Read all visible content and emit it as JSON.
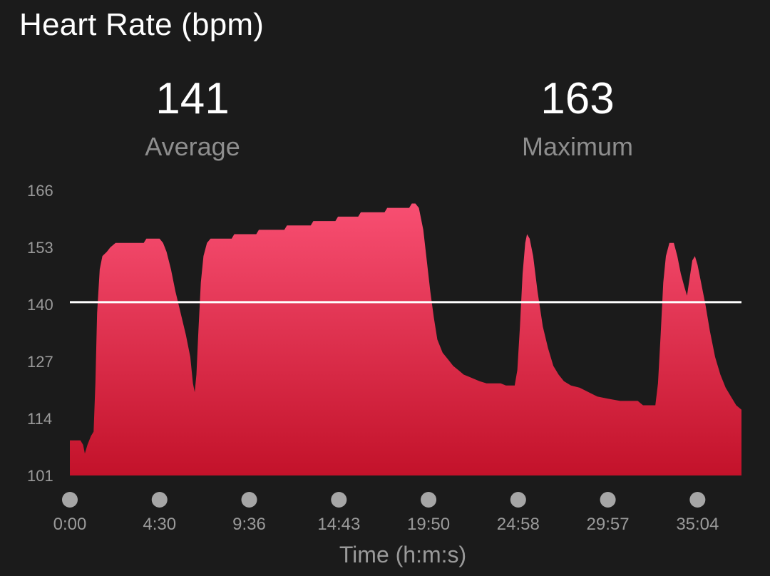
{
  "header": {
    "title": "Heart Rate (bpm)"
  },
  "stats": {
    "average": {
      "value": "141",
      "label": "Average"
    },
    "maximum": {
      "value": "163",
      "label": "Maximum"
    }
  },
  "colors": {
    "fill_top": "#f84f72",
    "fill_bottom": "#c3122a",
    "average_line": "#ffffff",
    "tick_dot": "#a6a6a6"
  },
  "chart_data": {
    "type": "area",
    "title": "Heart Rate (bpm)",
    "xlabel": "Time (h:m:s)",
    "ylabel": "",
    "ylim": [
      101,
      166
    ],
    "yticks": [
      "166",
      "153",
      "140",
      "127",
      "114",
      "101"
    ],
    "xlim_minutes": [
      0,
      38.2
    ],
    "xticks": [
      {
        "label": "0:00",
        "minutes": 0
      },
      {
        "label": "4:30",
        "minutes": 5.1
      },
      {
        "label": "9:36",
        "minutes": 10.2
      },
      {
        "label": "14:43",
        "minutes": 15.3
      },
      {
        "label": "19:50",
        "minutes": 20.4
      },
      {
        "label": "24:58",
        "minutes": 25.5
      },
      {
        "label": "29:57",
        "minutes": 30.6
      },
      {
        "label": "35:04",
        "minutes": 35.7
      }
    ],
    "average_line": 140.5,
    "grid": false,
    "legend": "none",
    "series": [
      {
        "points": [
          [
            0,
            109
          ],
          [
            0.6,
            109
          ],
          [
            0.75,
            108
          ],
          [
            0.85,
            106
          ],
          [
            1.0,
            108
          ],
          [
            1.2,
            110
          ],
          [
            1.35,
            111
          ],
          [
            1.45,
            122
          ],
          [
            1.55,
            138
          ],
          [
            1.7,
            148
          ],
          [
            1.85,
            151
          ],
          [
            2.1,
            152
          ],
          [
            2.3,
            153
          ],
          [
            2.6,
            154
          ],
          [
            4.2,
            154
          ],
          [
            4.35,
            155
          ],
          [
            5.1,
            155
          ],
          [
            5.3,
            154
          ],
          [
            5.5,
            152
          ],
          [
            5.75,
            148
          ],
          [
            6.0,
            143
          ],
          [
            6.3,
            138
          ],
          [
            6.6,
            133
          ],
          [
            6.85,
            128
          ],
          [
            7.0,
            122
          ],
          [
            7.1,
            120
          ],
          [
            7.2,
            124
          ],
          [
            7.3,
            133
          ],
          [
            7.45,
            145
          ],
          [
            7.6,
            151
          ],
          [
            7.8,
            154
          ],
          [
            8.0,
            155
          ],
          [
            9.2,
            155
          ],
          [
            9.35,
            156
          ],
          [
            10.6,
            156
          ],
          [
            10.75,
            157
          ],
          [
            12.2,
            157
          ],
          [
            12.35,
            158
          ],
          [
            13.7,
            158
          ],
          [
            13.85,
            159
          ],
          [
            15.1,
            159
          ],
          [
            15.25,
            160
          ],
          [
            16.4,
            160
          ],
          [
            16.55,
            161
          ],
          [
            17.9,
            161
          ],
          [
            18.05,
            162
          ],
          [
            19.3,
            162
          ],
          [
            19.45,
            163
          ],
          [
            19.65,
            163
          ],
          [
            19.85,
            162
          ],
          [
            20.1,
            157
          ],
          [
            20.3,
            150
          ],
          [
            20.5,
            143
          ],
          [
            20.7,
            137
          ],
          [
            20.9,
            132
          ],
          [
            21.2,
            129
          ],
          [
            21.5,
            127.5
          ],
          [
            21.8,
            126
          ],
          [
            22.1,
            125
          ],
          [
            22.4,
            124
          ],
          [
            22.7,
            123.5
          ],
          [
            23.0,
            123
          ],
          [
            23.3,
            122.5
          ],
          [
            23.7,
            122
          ],
          [
            24.5,
            122
          ],
          [
            24.8,
            121.5
          ],
          [
            25.3,
            121.5
          ],
          [
            25.45,
            125
          ],
          [
            25.6,
            135
          ],
          [
            25.75,
            147
          ],
          [
            25.9,
            154
          ],
          [
            26.0,
            156
          ],
          [
            26.15,
            155
          ],
          [
            26.35,
            151
          ],
          [
            26.6,
            143
          ],
          [
            26.9,
            135
          ],
          [
            27.2,
            130
          ],
          [
            27.5,
            126
          ],
          [
            27.8,
            124
          ],
          [
            28.1,
            122.5
          ],
          [
            28.5,
            121.5
          ],
          [
            29.0,
            121
          ],
          [
            29.5,
            120
          ],
          [
            30.0,
            119
          ],
          [
            30.6,
            118.5
          ],
          [
            31.3,
            118
          ],
          [
            32.3,
            118
          ],
          [
            32.6,
            117
          ],
          [
            33.3,
            117
          ],
          [
            33.45,
            122
          ],
          [
            33.6,
            133
          ],
          [
            33.75,
            145
          ],
          [
            33.9,
            151
          ],
          [
            34.1,
            154
          ],
          [
            34.35,
            154
          ],
          [
            34.55,
            151
          ],
          [
            34.75,
            147
          ],
          [
            34.95,
            144
          ],
          [
            35.1,
            142
          ],
          [
            35.25,
            146
          ],
          [
            35.4,
            150
          ],
          [
            35.55,
            151
          ],
          [
            35.7,
            149
          ],
          [
            35.9,
            145
          ],
          [
            36.15,
            140
          ],
          [
            36.4,
            134
          ],
          [
            36.7,
            128
          ],
          [
            37.0,
            124
          ],
          [
            37.3,
            121
          ],
          [
            37.6,
            119
          ],
          [
            37.9,
            117
          ],
          [
            38.2,
            116
          ]
        ]
      }
    ]
  }
}
